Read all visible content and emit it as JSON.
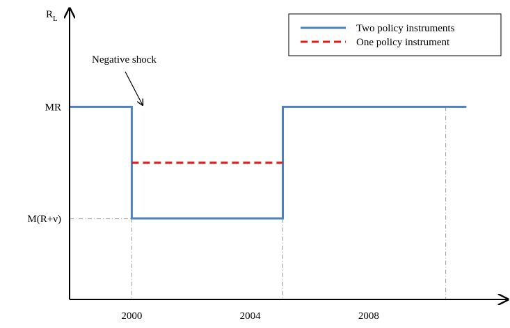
{
  "chart_data": {
    "type": "line",
    "y_label": "R",
    "y_label_subscript": "L",
    "xlim": [
      1997.9,
      2012.7
    ],
    "ylim": [
      0,
      1.5
    ],
    "xticks": [
      2000,
      2004,
      2008
    ],
    "yticks": [
      {
        "value": 1,
        "label": "MR"
      },
      {
        "value": 0.42,
        "label": "M(R+ν)"
      }
    ],
    "series": [
      {
        "name": "Two policy instruments",
        "color": "#4f81bd",
        "style": "solid",
        "x": [
          1997.9,
          2000,
          2000,
          2005.1,
          2005.1,
          2011.3
        ],
        "values": [
          1,
          1,
          0.42,
          0.42,
          1,
          1
        ]
      },
      {
        "name": "One policy instrument",
        "color": "#e41a1c",
        "style": "dashed",
        "x": [
          2000,
          2005.1
        ],
        "values": [
          0.71,
          0.71
        ]
      }
    ],
    "x_guides": [
      2000,
      2005.1,
      2010.6
    ],
    "y_guides": [
      0.42
    ],
    "annotation": "Negative shock",
    "legend": "top-right"
  }
}
